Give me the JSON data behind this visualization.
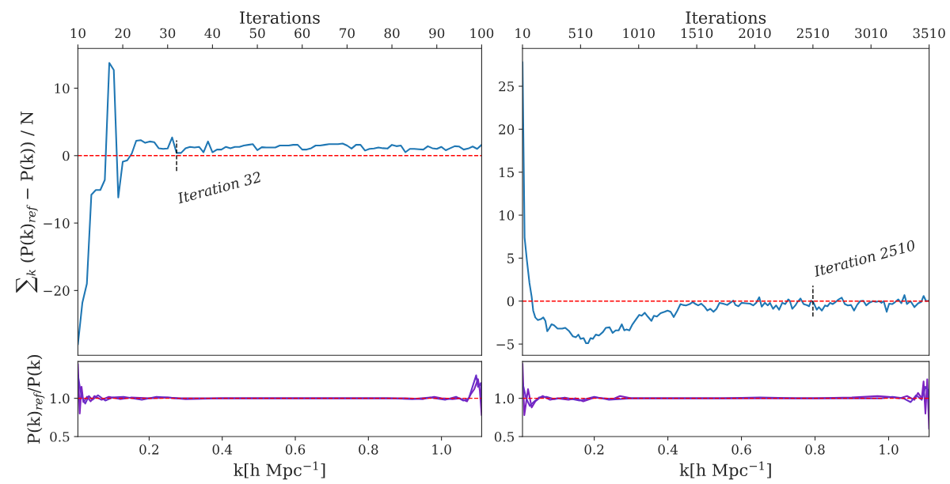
{
  "chart_data": [
    {
      "type": "line",
      "xlabel": "Iterations",
      "ylabel": "∑$_{k}$ (P(k)$_{ref}$ − P(k)) / N",
      "xlim": [
        10,
        100
      ],
      "xticks": [
        10,
        20,
        30,
        40,
        50,
        60,
        70,
        80,
        90,
        100
      ],
      "ylim": [
        -29.6,
        15.9
      ],
      "yticks": [
        {
          "value": -20,
          "label": "−20"
        },
        {
          "value": -10,
          "label": "−10"
        },
        0,
        10
      ],
      "series": [
        {
          "color": "#1f77b4",
          "x": [
            10,
            11,
            12,
            13,
            14,
            15,
            16,
            17,
            18,
            19,
            20,
            21,
            22,
            23,
            24,
            25,
            26,
            27,
            28,
            29,
            30,
            31,
            32,
            33,
            34,
            35,
            36,
            37,
            38,
            39,
            40,
            41,
            42,
            43,
            44,
            45,
            46,
            47,
            48,
            49,
            50,
            51,
            52,
            53,
            54,
            55,
            56,
            57,
            58,
            59,
            60,
            61,
            62,
            63,
            64,
            65,
            66,
            67,
            68,
            69,
            70,
            71,
            72,
            73,
            74,
            75,
            76,
            77,
            78,
            79,
            80,
            81,
            82,
            83,
            84,
            85,
            86,
            87,
            88,
            89,
            90,
            91,
            92,
            93,
            94,
            95,
            96,
            97,
            98,
            99,
            100
          ],
          "values": [
            -28,
            -21.8,
            -19,
            -5.8,
            -5.1,
            -5.1,
            -3.6,
            13.75,
            12.7,
            -6.2,
            -0.9,
            -0.7,
            0.3,
            2.2,
            2.3,
            1.9,
            2.1,
            2.0,
            1.1,
            1.0,
            1.05,
            2.7,
            0.4,
            0.4,
            1.1,
            1.3,
            1.2,
            1.3,
            0.5,
            2.1,
            0.5,
            0.9,
            0.9,
            1.3,
            1.1,
            1.3,
            1.3,
            1.5,
            1.6,
            1.7,
            0.8,
            1.25,
            1.2,
            1.2,
            1.2,
            1.5,
            1.5,
            1.5,
            1.6,
            1.6,
            0.9,
            0.9,
            1.1,
            1.5,
            1.5,
            1.6,
            1.7,
            1.7,
            1.7,
            1.8,
            1.5,
            1.05,
            1.6,
            1.6,
            0.75,
            1.0,
            1.05,
            1.2,
            1.1,
            1.05,
            1.6,
            1.4,
            1.5,
            0.5,
            1.0,
            1.0,
            0.95,
            0.9,
            1.4,
            1.1,
            1.0,
            1.3,
            0.8,
            1.1,
            1.4,
            1.35,
            0.9,
            1.05,
            1.35,
            1.0,
            1.6
          ]
        }
      ],
      "ref_lines": [
        {
          "axis": "y",
          "value": 0,
          "color": "#ff0000",
          "line_style": "dashed"
        },
        {
          "axis": "x",
          "value": 32,
          "label": "Iteration 32",
          "color": "#000000",
          "line_style": "dashed"
        }
      ]
    },
    {
      "type": "line",
      "xlabel": "Iterations",
      "xlim": [
        10,
        3510
      ],
      "xticks": [
        10,
        510,
        1010,
        1510,
        2010,
        2510,
        3010,
        3510
      ],
      "ylim": [
        -6.3,
        29.4
      ],
      "yticks": [
        {
          "value": -5,
          "label": "−5"
        },
        0,
        5,
        10,
        15,
        20,
        25
      ],
      "series": [
        {
          "color": "#1f77b4",
          "x": [
            10,
            28,
            49,
            70,
            89,
            102,
            120,
            141,
            168,
            189,
            207,
            223,
            239,
            260,
            281,
            312,
            352,
            378,
            412,
            444,
            470,
            491,
            510,
            536,
            557,
            575,
            596,
            615,
            641,
            668,
            702,
            728,
            760,
            786,
            812,
            838,
            865,
            886,
            904,
            930,
            957,
            988,
            1015,
            1036,
            1062,
            1088,
            1120,
            1141,
            1167,
            1199,
            1233,
            1259,
            1285,
            1312,
            1343,
            1370,
            1391,
            1417,
            1449,
            1475,
            1501,
            1522,
            1549,
            1580,
            1601,
            1627,
            1654,
            1680,
            1706,
            1738,
            1772,
            1798,
            1825,
            1843,
            1869,
            1896,
            1930,
            1969,
            1996,
            2022,
            2048,
            2069,
            2096,
            2122,
            2140,
            2167,
            2193,
            2219,
            2246,
            2272,
            2298,
            2311,
            2332,
            2359,
            2377,
            2403,
            2430,
            2456,
            2477,
            2495,
            2516,
            2543,
            2561,
            2587,
            2614,
            2635,
            2658,
            2679,
            2706,
            2732,
            2758,
            2785,
            2811,
            2838,
            2864,
            2890,
            2916,
            2943,
            2969,
            2995,
            3027,
            3053,
            3079,
            3100,
            3119,
            3145,
            3166,
            3192,
            3219,
            3245,
            3271,
            3298,
            3319,
            3350,
            3384,
            3416,
            3442,
            3463,
            3484,
            3510
          ],
          "values": [
            27.8,
            7.4,
            4.6,
            2.1,
            0.5,
            -1.1,
            -1.9,
            -2.2,
            -2.1,
            -1.9,
            -2.3,
            -3.5,
            -3.2,
            -2.7,
            -2.8,
            -3.2,
            -3.2,
            -3.1,
            -3.5,
            -4.1,
            -4.2,
            -3.9,
            -4.4,
            -4.3,
            -4.9,
            -4.9,
            -4.3,
            -4.4,
            -3.9,
            -4.0,
            -3.6,
            -3.1,
            -3.05,
            -3.7,
            -3.4,
            -3.4,
            -2.7,
            -3.4,
            -3.3,
            -3.4,
            -2.7,
            -2.1,
            -1.6,
            -1.7,
            -1.35,
            -1.8,
            -2.3,
            -1.7,
            -1.8,
            -1.4,
            -1.25,
            -1.1,
            -1.25,
            -1.85,
            -1.1,
            -0.35,
            -0.45,
            -0.5,
            -0.35,
            -0.1,
            -0.35,
            -0.5,
            -0.3,
            -0.7,
            -1.1,
            -0.9,
            -1.25,
            -0.9,
            -0.2,
            -0.3,
            -0.45,
            -0.2,
            0.05,
            -0.45,
            -0.6,
            -0.2,
            -0.25,
            -0.3,
            -0.5,
            -0.2,
            0.45,
            -0.65,
            -0.2,
            -0.5,
            -0.2,
            -0.9,
            -0.5,
            -1.0,
            -0.2,
            -0.35,
            0.2,
            0.05,
            -0.9,
            -0.5,
            -0.1,
            0.3,
            -0.35,
            -0.45,
            -0.6,
            0.05,
            -0.2,
            -1.0,
            -0.7,
            -1.1,
            -0.5,
            -0.6,
            -0.2,
            -0.35,
            -0.1,
            0.2,
            0.4,
            -0.35,
            -0.5,
            -0.45,
            -1.1,
            -0.45,
            0.0,
            0.05,
            -0.5,
            -0.2,
            0.0,
            -0.1,
            0.0,
            -0.2,
            0.0,
            -1.25,
            -0.3,
            -0.35,
            -0.1,
            0.2,
            -0.25,
            0.7,
            -0.35,
            0.0,
            -0.7,
            -0.25,
            -0.1,
            0.6,
            0.0,
            0.05
          ]
        }
      ],
      "ref_lines": [
        {
          "axis": "y",
          "value": 0,
          "color": "#ff0000",
          "line_style": "dashed"
        },
        {
          "axis": "x",
          "value": 2510,
          "label": "Iteration 2510",
          "color": "#000000",
          "line_style": "dashed"
        }
      ]
    },
    {
      "type": "line",
      "xlabel": "k[h Mpc$^{−1}$]",
      "ylabel": "P(k)$_{ref}$/P(k)",
      "xlim": [
        0.005,
        1.11
      ],
      "xticks": [
        {
          "value": 0.2,
          "label": "0.2"
        },
        {
          "value": 0.4,
          "label": "0.4"
        },
        {
          "value": 0.6,
          "label": "0.6"
        },
        {
          "value": 0.8,
          "label": "0.8"
        },
        {
          "value": 1.0,
          "label": "1.0"
        }
      ],
      "ylim": [
        0.5,
        1.48
      ],
      "yticks": [
        {
          "value": 0.5,
          "label": "0.5"
        },
        {
          "value": 1.0,
          "label": "1.0"
        }
      ],
      "series": [
        {
          "color": "#7b22c0",
          "x": [
            0.005,
            0.01,
            0.015,
            0.02,
            0.03,
            0.04,
            0.05,
            0.07,
            0.09,
            0.12,
            0.15,
            0.2,
            0.25,
            0.3,
            0.4,
            0.5,
            0.6,
            0.7,
            0.8,
            0.9,
            0.95,
            0.98,
            1.0,
            1.03,
            1.05,
            1.07,
            1.08,
            1.09,
            1.1,
            1.105,
            1.11
          ],
          "values": [
            1.45,
            0.8,
            1.15,
            0.95,
            1.02,
            0.96,
            1.03,
            0.98,
            1.02,
            0.99,
            1.01,
            1.0,
            1.01,
            0.99,
            1.0,
            1.0,
            1.0,
            1.0,
            1.0,
            1.0,
            0.99,
            1.02,
            1.0,
            0.99,
            1.0,
            0.96,
            1.05,
            1.12,
            1.25,
            1.1,
            0.78
          ]
        },
        {
          "color": "#6a2dc8",
          "x": [
            0.005,
            0.012,
            0.018,
            0.025,
            0.035,
            0.045,
            0.06,
            0.08,
            0.1,
            0.13,
            0.18,
            0.22,
            0.28,
            0.35,
            0.45,
            0.55,
            0.65,
            0.75,
            0.85,
            0.92,
            0.97,
            1.01,
            1.04,
            1.06,
            1.075,
            1.085,
            1.095,
            1.1,
            1.108,
            1.11
          ],
          "values": [
            1.3,
            1.1,
            1.0,
            0.93,
            1.03,
            0.98,
            1.04,
            0.97,
            1.01,
            1.02,
            0.98,
            1.02,
            1.0,
            1.0,
            1.0,
            1.0,
            1.0,
            1.0,
            1.0,
            0.99,
            1.01,
            0.98,
            1.02,
            0.97,
            1.0,
            1.15,
            1.3,
            1.15,
            1.2,
            0.95
          ]
        }
      ],
      "ref_lines": [
        {
          "axis": "y",
          "value": 1.0,
          "color": "#ff0000",
          "line_style": "dashed"
        }
      ]
    },
    {
      "type": "line",
      "xlabel": "k[h Mpc$^{−1}$]",
      "xlim": [
        0.005,
        1.11
      ],
      "xticks": [
        {
          "value": 0.2,
          "label": "0.2"
        },
        {
          "value": 0.4,
          "label": "0.4"
        },
        {
          "value": 0.6,
          "label": "0.6"
        },
        {
          "value": 0.8,
          "label": "0.8"
        },
        {
          "value": 1.0,
          "label": "1.0"
        }
      ],
      "ylim": [
        0.5,
        1.48
      ],
      "yticks": [
        {
          "value": 0.5,
          "label": "0.5"
        },
        {
          "value": 1.0,
          "label": "1.0"
        }
      ],
      "series": [
        {
          "color": "#7b22c0",
          "x": [
            0.005,
            0.01,
            0.02,
            0.03,
            0.04,
            0.05,
            0.06,
            0.08,
            0.1,
            0.13,
            0.15,
            0.17,
            0.2,
            0.25,
            0.27,
            0.3,
            0.4,
            0.5,
            0.6,
            0.7,
            0.8,
            0.9,
            0.97,
            1.0,
            1.03,
            1.05,
            1.07,
            1.08,
            1.09,
            1.095,
            1.1,
            1.105,
            1.11
          ],
          "values": [
            1.45,
            0.78,
            1.12,
            0.88,
            0.96,
            1.0,
            1.03,
            0.98,
            1.0,
            0.98,
            1.0,
            0.96,
            1.01,
            0.99,
            1.03,
            1.0,
            1.0,
            1.0,
            1.0,
            1.0,
            1.0,
            1.01,
            1.03,
            1.02,
            1.0,
            1.03,
            0.98,
            1.07,
            1.0,
            1.22,
            0.8,
            1.25,
            0.6
          ]
        },
        {
          "color": "#6a2dc8",
          "x": [
            0.005,
            0.015,
            0.025,
            0.035,
            0.05,
            0.07,
            0.09,
            0.12,
            0.16,
            0.2,
            0.24,
            0.3,
            0.35,
            0.45,
            0.55,
            0.65,
            0.75,
            0.85,
            0.92,
            0.98,
            1.01,
            1.04,
            1.06,
            1.075,
            1.09,
            1.1,
            1.108,
            1.11
          ],
          "values": [
            1.2,
            1.0,
            0.9,
            0.95,
            1.01,
            1.02,
            0.99,
            1.01,
            0.97,
            1.02,
            0.98,
            1.0,
            1.0,
            1.0,
            1.0,
            1.01,
            1.0,
            1.0,
            1.0,
            1.0,
            1.02,
            1.0,
            0.95,
            1.04,
            0.98,
            1.15,
            1.1,
            0.85
          ]
        }
      ],
      "ref_lines": [
        {
          "axis": "y",
          "value": 1.0,
          "color": "#ff0000",
          "line_style": "dashed"
        }
      ]
    }
  ]
}
